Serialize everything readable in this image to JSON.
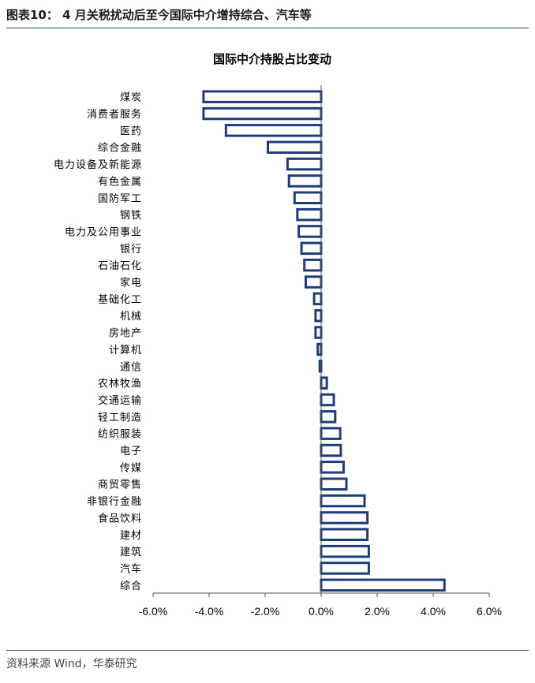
{
  "figure_title": "图表10： 4 月关税扰动后至今国际中介增持综合、汽车等",
  "source": "资料来源 Wind，华泰研究",
  "colors": {
    "bar_stroke": "#1f3c7a",
    "bar_fill": "#ffffff",
    "rule": "#2c3e6e"
  },
  "chart_data": {
    "type": "bar",
    "orientation": "horizontal",
    "title": "国际中介持股占比变动",
    "xlabel": "",
    "ylabel": "",
    "xlim": [
      -6.0,
      6.0
    ],
    "x_ticks": [
      -6.0,
      -4.0,
      -2.0,
      0.0,
      2.0,
      4.0,
      6.0
    ],
    "x_tick_labels": [
      "-6.0%",
      "-4.0%",
      "-2.0%",
      "0.0%",
      "2.0%",
      "4.0%",
      "6.0%"
    ],
    "grid": false,
    "categories": [
      "煤炭",
      "消费者服务",
      "医药",
      "综合金融",
      "电力设备及新能源",
      "有色金属",
      "国防军工",
      "钢铁",
      "电力及公用事业",
      "银行",
      "石油石化",
      "家电",
      "基础化工",
      "机械",
      "房地产",
      "计算机",
      "通信",
      "农林牧渔",
      "交通运输",
      "轻工制造",
      "纺织服装",
      "电子",
      "传媒",
      "商贸零售",
      "非银行金融",
      "食品饮料",
      "建材",
      "建筑",
      "汽车",
      "综合"
    ],
    "values": [
      -4.2,
      -4.2,
      -3.4,
      -1.9,
      -1.2,
      -1.15,
      -0.95,
      -0.85,
      -0.8,
      -0.7,
      -0.6,
      -0.55,
      -0.25,
      -0.2,
      -0.2,
      -0.12,
      -0.05,
      0.2,
      0.45,
      0.5,
      0.68,
      0.7,
      0.8,
      0.9,
      1.55,
      1.65,
      1.65,
      1.7,
      1.7,
      4.4
    ]
  }
}
